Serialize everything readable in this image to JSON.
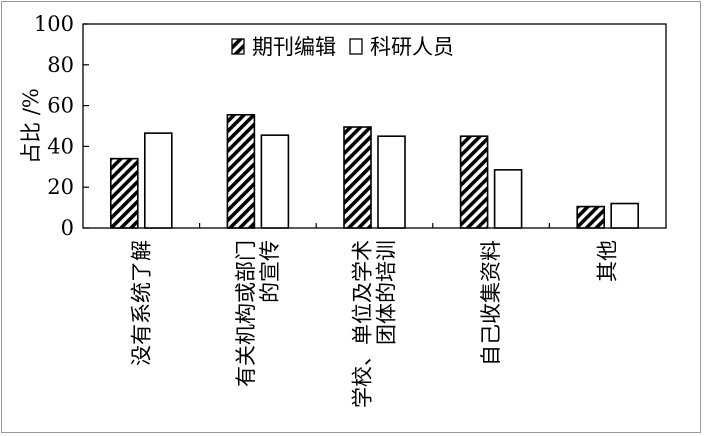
{
  "chart_data": {
    "type": "bar",
    "categories": [
      [
        "没有系统了解"
      ],
      [
        "有关机构或部门",
        "的宣传"
      ],
      [
        "学校、单位及学术",
        "团体的培训"
      ],
      [
        "自己收集资料"
      ],
      [
        "其他"
      ]
    ],
    "series": [
      {
        "name": "期刊编辑",
        "values": [
          34,
          55.5,
          49.5,
          45,
          10.5
        ],
        "pattern": "hatched"
      },
      {
        "name": "科研人员",
        "values": [
          46.5,
          45.5,
          45,
          28.5,
          12
        ],
        "pattern": "white"
      }
    ],
    "ylabel": "占比 /%",
    "ylim": [
      0,
      100
    ],
    "yticks": [
      "0",
      "20",
      "40",
      "60",
      "80",
      "100"
    ],
    "legend_position": "top-center",
    "grid": false
  }
}
